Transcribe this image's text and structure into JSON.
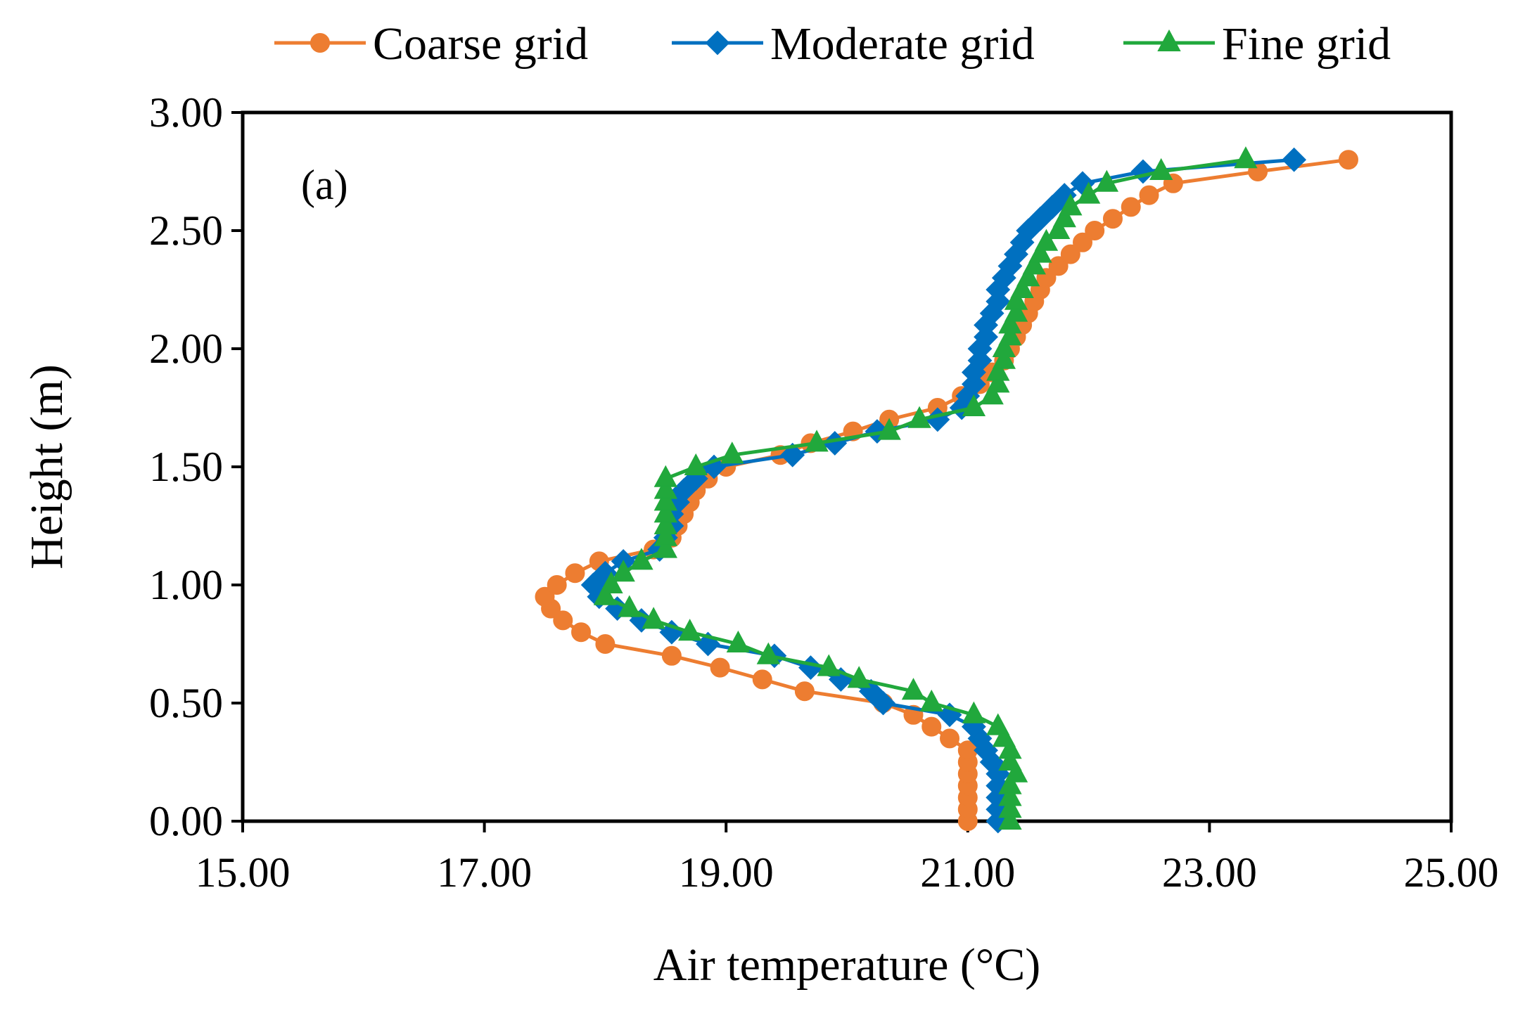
{
  "chart_data": {
    "type": "line",
    "panel_label": "(a)",
    "xlabel": "Air temperature (°C)",
    "ylabel": "Height (m)",
    "xlim": [
      15,
      25
    ],
    "ylim": [
      0,
      3
    ],
    "xticks": [
      15,
      17,
      19,
      21,
      23,
      25
    ],
    "yticks": [
      0,
      0.5,
      1,
      1.5,
      2,
      2.5,
      3
    ],
    "xtick_labels": [
      "15.00",
      "17.00",
      "19.00",
      "21.00",
      "23.00",
      "25.00"
    ],
    "ytick_labels": [
      "0.00",
      "0.50",
      "1.00",
      "1.50",
      "2.00",
      "2.50",
      "3.00"
    ],
    "legend_position": "top",
    "series": [
      {
        "name": "Coarse grid",
        "color": "#ED7D31",
        "marker": "circle",
        "points": [
          [
            21.0,
            0.0
          ],
          [
            21.0,
            0.05
          ],
          [
            21.0,
            0.1
          ],
          [
            21.0,
            0.15
          ],
          [
            21.0,
            0.2
          ],
          [
            21.0,
            0.25
          ],
          [
            21.0,
            0.3
          ],
          [
            20.85,
            0.35
          ],
          [
            20.7,
            0.4
          ],
          [
            20.55,
            0.45
          ],
          [
            20.3,
            0.5
          ],
          [
            19.65,
            0.55
          ],
          [
            19.3,
            0.6
          ],
          [
            18.95,
            0.65
          ],
          [
            18.55,
            0.7
          ],
          [
            18.0,
            0.75
          ],
          [
            17.8,
            0.8
          ],
          [
            17.65,
            0.85
          ],
          [
            17.55,
            0.9
          ],
          [
            17.5,
            0.95
          ],
          [
            17.6,
            1.0
          ],
          [
            17.75,
            1.05
          ],
          [
            17.95,
            1.1
          ],
          [
            18.4,
            1.15
          ],
          [
            18.55,
            1.2
          ],
          [
            18.6,
            1.25
          ],
          [
            18.65,
            1.3
          ],
          [
            18.7,
            1.35
          ],
          [
            18.75,
            1.4
          ],
          [
            18.85,
            1.45
          ],
          [
            19.0,
            1.5
          ],
          [
            19.45,
            1.55
          ],
          [
            19.7,
            1.6
          ],
          [
            20.05,
            1.65
          ],
          [
            20.35,
            1.7
          ],
          [
            20.75,
            1.75
          ],
          [
            20.95,
            1.8
          ],
          [
            21.1,
            1.85
          ],
          [
            21.2,
            1.9
          ],
          [
            21.3,
            1.95
          ],
          [
            21.35,
            2.0
          ],
          [
            21.4,
            2.05
          ],
          [
            21.45,
            2.1
          ],
          [
            21.5,
            2.15
          ],
          [
            21.55,
            2.2
          ],
          [
            21.6,
            2.25
          ],
          [
            21.65,
            2.3
          ],
          [
            21.75,
            2.35
          ],
          [
            21.85,
            2.4
          ],
          [
            21.95,
            2.45
          ],
          [
            22.05,
            2.5
          ],
          [
            22.2,
            2.55
          ],
          [
            22.35,
            2.6
          ],
          [
            22.5,
            2.65
          ],
          [
            22.7,
            2.7
          ],
          [
            23.4,
            2.75
          ],
          [
            24.15,
            2.8
          ]
        ]
      },
      {
        "name": "Moderate grid",
        "color": "#0070C0",
        "marker": "diamond",
        "points": [
          [
            21.25,
            0.0
          ],
          [
            21.25,
            0.05
          ],
          [
            21.25,
            0.1
          ],
          [
            21.25,
            0.15
          ],
          [
            21.25,
            0.2
          ],
          [
            21.2,
            0.25
          ],
          [
            21.15,
            0.3
          ],
          [
            21.1,
            0.35
          ],
          [
            21.05,
            0.4
          ],
          [
            20.85,
            0.45
          ],
          [
            20.3,
            0.5
          ],
          [
            20.2,
            0.55
          ],
          [
            19.95,
            0.6
          ],
          [
            19.7,
            0.65
          ],
          [
            19.4,
            0.7
          ],
          [
            18.85,
            0.75
          ],
          [
            18.55,
            0.8
          ],
          [
            18.3,
            0.85
          ],
          [
            18.1,
            0.9
          ],
          [
            17.95,
            0.95
          ],
          [
            17.9,
            1.0
          ],
          [
            18.0,
            1.05
          ],
          [
            18.15,
            1.1
          ],
          [
            18.45,
            1.15
          ],
          [
            18.5,
            1.2
          ],
          [
            18.55,
            1.25
          ],
          [
            18.55,
            1.3
          ],
          [
            18.6,
            1.35
          ],
          [
            18.65,
            1.4
          ],
          [
            18.75,
            1.45
          ],
          [
            18.9,
            1.5
          ],
          [
            19.55,
            1.55
          ],
          [
            19.9,
            1.6
          ],
          [
            20.25,
            1.65
          ],
          [
            20.75,
            1.7
          ],
          [
            20.95,
            1.75
          ],
          [
            21.0,
            1.8
          ],
          [
            21.05,
            1.85
          ],
          [
            21.05,
            1.9
          ],
          [
            21.1,
            1.95
          ],
          [
            21.1,
            2.0
          ],
          [
            21.15,
            2.05
          ],
          [
            21.15,
            2.1
          ],
          [
            21.2,
            2.15
          ],
          [
            21.25,
            2.2
          ],
          [
            21.25,
            2.25
          ],
          [
            21.3,
            2.3
          ],
          [
            21.35,
            2.35
          ],
          [
            21.4,
            2.4
          ],
          [
            21.45,
            2.45
          ],
          [
            21.5,
            2.5
          ],
          [
            21.6,
            2.55
          ],
          [
            21.7,
            2.6
          ],
          [
            21.8,
            2.65
          ],
          [
            21.95,
            2.7
          ],
          [
            22.45,
            2.75
          ],
          [
            23.7,
            2.8
          ]
        ]
      },
      {
        "name": "Fine grid",
        "color": "#21A83C",
        "marker": "triangle",
        "points": [
          [
            21.35,
            0.0
          ],
          [
            21.35,
            0.05
          ],
          [
            21.35,
            0.1
          ],
          [
            21.35,
            0.15
          ],
          [
            21.4,
            0.2
          ],
          [
            21.35,
            0.25
          ],
          [
            21.35,
            0.3
          ],
          [
            21.3,
            0.35
          ],
          [
            21.25,
            0.4
          ],
          [
            21.05,
            0.45
          ],
          [
            20.7,
            0.5
          ],
          [
            20.55,
            0.55
          ],
          [
            20.1,
            0.6
          ],
          [
            19.85,
            0.65
          ],
          [
            19.35,
            0.7
          ],
          [
            19.1,
            0.75
          ],
          [
            18.7,
            0.8
          ],
          [
            18.4,
            0.85
          ],
          [
            18.2,
            0.9
          ],
          [
            18.0,
            0.95
          ],
          [
            18.05,
            1.0
          ],
          [
            18.15,
            1.05
          ],
          [
            18.3,
            1.1
          ],
          [
            18.5,
            1.15
          ],
          [
            18.5,
            1.2
          ],
          [
            18.5,
            1.25
          ],
          [
            18.5,
            1.3
          ],
          [
            18.5,
            1.35
          ],
          [
            18.5,
            1.4
          ],
          [
            18.5,
            1.45
          ],
          [
            18.75,
            1.5
          ],
          [
            19.05,
            1.55
          ],
          [
            19.75,
            1.6
          ],
          [
            20.35,
            1.65
          ],
          [
            20.6,
            1.7
          ],
          [
            21.05,
            1.75
          ],
          [
            21.2,
            1.8
          ],
          [
            21.25,
            1.85
          ],
          [
            21.25,
            1.9
          ],
          [
            21.3,
            1.95
          ],
          [
            21.3,
            2.0
          ],
          [
            21.35,
            2.05
          ],
          [
            21.35,
            2.1
          ],
          [
            21.4,
            2.15
          ],
          [
            21.4,
            2.2
          ],
          [
            21.45,
            2.25
          ],
          [
            21.5,
            2.3
          ],
          [
            21.55,
            2.35
          ],
          [
            21.6,
            2.4
          ],
          [
            21.65,
            2.45
          ],
          [
            21.75,
            2.5
          ],
          [
            21.8,
            2.55
          ],
          [
            21.85,
            2.6
          ],
          [
            22.0,
            2.65
          ],
          [
            22.15,
            2.7
          ],
          [
            22.6,
            2.75
          ],
          [
            23.3,
            2.8
          ]
        ]
      }
    ]
  }
}
